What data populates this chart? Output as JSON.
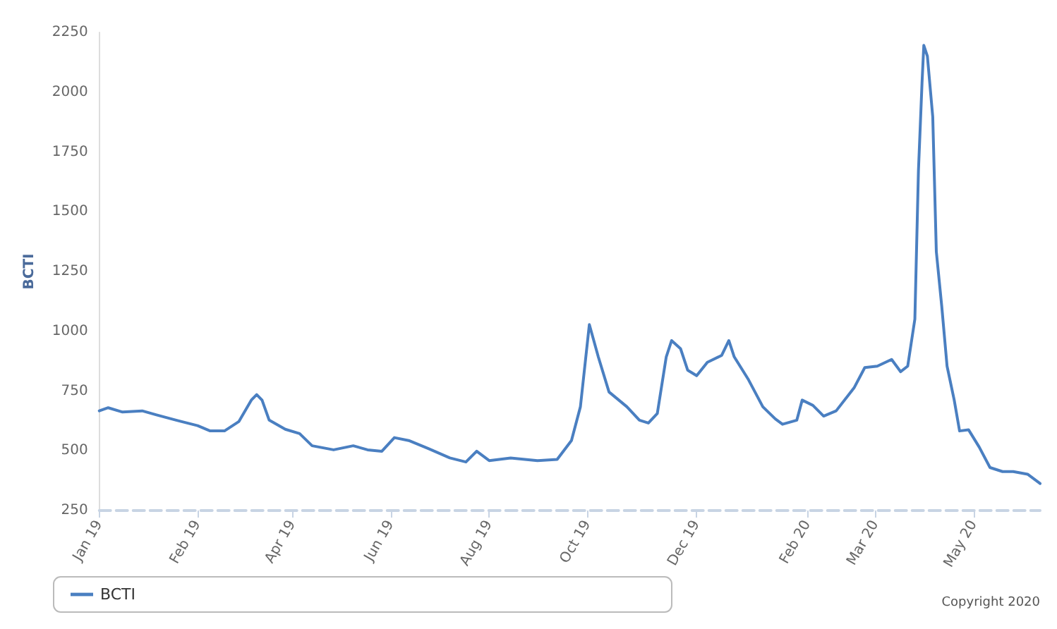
{
  "chart_data": {
    "type": "line",
    "ylabel": "BCTI",
    "annotations": [
      "Copyright 2020"
    ],
    "x": [
      "2019-01-01",
      "2019-01-06",
      "2019-01-14",
      "2019-01-25",
      "2019-02-02",
      "2019-02-13",
      "2019-02-25",
      "2019-03-04",
      "2019-03-12",
      "2019-03-20",
      "2019-03-27",
      "2019-03-30",
      "2019-04-02",
      "2019-04-06",
      "2019-04-15",
      "2019-04-23",
      "2019-04-30",
      "2019-05-12",
      "2019-05-23",
      "2019-05-31",
      "2019-06-08",
      "2019-06-15",
      "2019-06-23",
      "2019-07-04",
      "2019-07-16",
      "2019-07-25",
      "2019-07-31",
      "2019-08-07",
      "2019-08-19",
      "2019-09-03",
      "2019-09-14",
      "2019-09-22",
      "2019-09-27",
      "2019-10-02",
      "2019-10-07",
      "2019-10-13",
      "2019-10-23",
      "2019-10-30",
      "2019-11-04",
      "2019-11-09",
      "2019-11-14",
      "2019-11-17",
      "2019-11-22",
      "2019-11-26",
      "2019-12-01",
      "2019-12-07",
      "2019-12-15",
      "2019-12-19",
      "2019-12-22",
      "2019-12-30",
      "2020-01-07",
      "2020-01-14",
      "2020-01-18",
      "2020-01-26",
      "2020-01-29",
      "2020-02-04",
      "2020-02-10",
      "2020-02-17",
      "2020-02-27",
      "2020-03-04",
      "2020-03-11",
      "2020-03-19",
      "2020-03-24",
      "2020-03-28",
      "2020-04-01",
      "2020-04-03",
      "2020-04-05",
      "2020-04-06",
      "2020-04-08",
      "2020-04-11",
      "2020-04-13",
      "2020-04-16",
      "2020-04-19",
      "2020-04-23",
      "2020-04-26",
      "2020-05-01",
      "2020-05-07",
      "2020-05-13",
      "2020-05-20",
      "2020-05-26",
      "2020-06-03",
      "2020-06-10"
    ],
    "series": [
      {
        "name": "BCTI",
        "color": "#4a7fc1",
        "values": [
          667,
          680,
          662,
          667,
          650,
          628,
          605,
          583,
          583,
          622,
          712,
          735,
          712,
          628,
          590,
          572,
          521,
          504,
          521,
          504,
          498,
          555,
          543,
          509,
          470,
          453,
          498,
          459,
          470,
          459,
          464,
          543,
          684,
          1028,
          893,
          746,
          684,
          628,
          616,
          656,
          893,
          961,
          927,
          837,
          814,
          870,
          899,
          961,
          893,
          797,
          684,
          633,
          611,
          628,
          712,
          690,
          645,
          667,
          763,
          848,
          854,
          882,
          831,
          854,
          1051,
          1671,
          2038,
          2196,
          2151,
          1897,
          1333,
          1107,
          854,
          712,
          583,
          588,
          515,
          430,
          413,
          413,
          402,
          363
        ]
      }
    ],
    "xlim": [
      "2019-01-01",
      "2020-06-10"
    ],
    "xticks": [
      {
        "value": "2019-01-01",
        "label": "Jan 19"
      },
      {
        "value": "2019-02-25",
        "label": "Feb 19"
      },
      {
        "value": "2019-04-19",
        "label": "Apr 19"
      },
      {
        "value": "2019-06-13",
        "label": "Jun 19"
      },
      {
        "value": "2019-08-07",
        "label": "Aug 19"
      },
      {
        "value": "2019-10-01",
        "label": "Oct 19"
      },
      {
        "value": "2019-12-01",
        "label": "Dec 19"
      },
      {
        "value": "2020-02-01",
        "label": "Feb 20"
      },
      {
        "value": "2020-03-10",
        "label": "Mar 20"
      },
      {
        "value": "2020-05-04",
        "label": "May 20"
      }
    ],
    "ylim": [
      250,
      2250
    ],
    "yticks": [
      250,
      500,
      750,
      1000,
      1250,
      1500,
      1750,
      2000,
      2250
    ],
    "grid": false,
    "legend": "bottom left",
    "marker": "none",
    "line_style": "solid"
  }
}
